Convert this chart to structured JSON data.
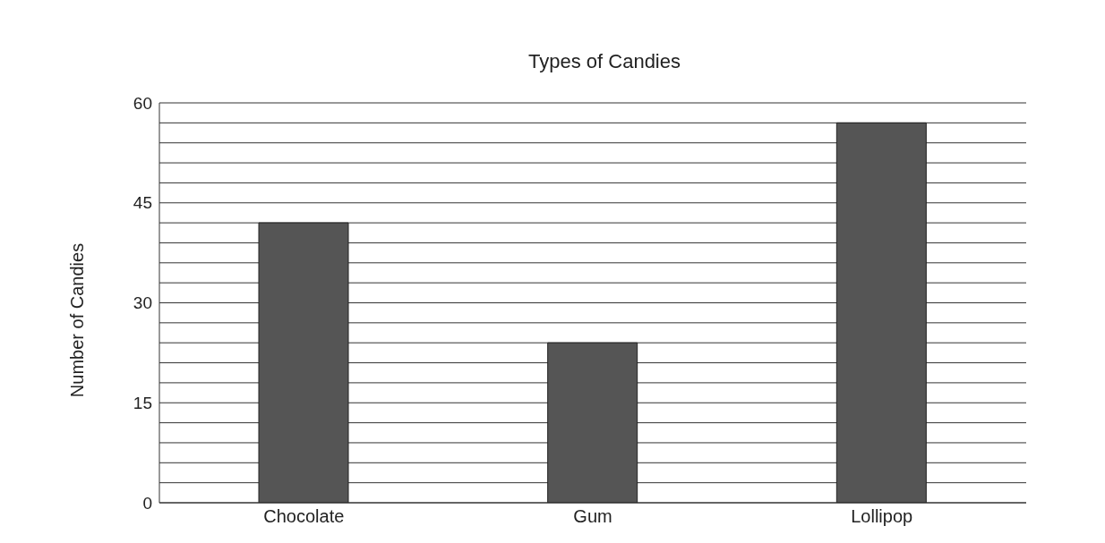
{
  "chart_data": {
    "type": "bar",
    "title": "Types of Candies",
    "ylabel": "Number of Candies",
    "categories": [
      "Chocolate",
      "Gum",
      "Lollipop"
    ],
    "values": [
      42,
      24,
      57
    ],
    "color": "#555555",
    "ylim": [
      0,
      60
    ],
    "yticks": [
      0,
      {
        "value": 3,
        "label": null
      },
      {
        "value": 6,
        "label": null
      },
      {
        "value": 9,
        "label": null
      },
      {
        "value": 12,
        "label": null
      },
      15,
      {
        "value": 18,
        "label": null
      },
      {
        "value": 21,
        "label": null
      },
      {
        "value": 24,
        "label": null
      },
      {
        "value": 27,
        "label": null
      },
      30,
      {
        "value": 33,
        "label": null
      },
      {
        "value": 36,
        "label": null
      },
      {
        "value": 39,
        "label": null
      },
      {
        "value": 42,
        "label": null
      },
      45,
      {
        "value": 48,
        "label": null
      },
      {
        "value": 51,
        "label": null
      },
      {
        "value": 54,
        "label": null
      },
      {
        "value": 57,
        "label": null
      },
      60
    ],
    "grid": "y"
  }
}
